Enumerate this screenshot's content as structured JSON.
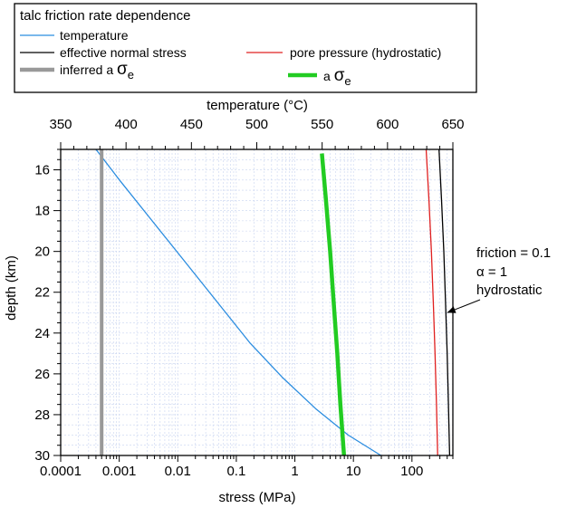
{
  "chart_data": {
    "type": "line",
    "legend": {
      "title": "talc friction rate dependence",
      "placement": "top",
      "entries": [
        {
          "label": "temperature",
          "color": "#2b8de0",
          "style": "thin"
        },
        {
          "label": "effective normal stress",
          "color": "#000000",
          "style": "thin"
        },
        {
          "label": "pore pressure (hydrostatic)",
          "color": "#e02020",
          "style": "thin"
        },
        {
          "label_prefix": "inferred a",
          "label_symbol": "σ",
          "label_sub": "e",
          "color": "#999999",
          "style": "thick"
        },
        {
          "label_prefix": "a",
          "label_symbol": "σ",
          "label_sub": "e",
          "color": "#22cc22",
          "style": "thick"
        }
      ]
    },
    "top_axis": {
      "label": "temperature (°C)",
      "range": [
        350,
        650
      ],
      "ticks": [
        "350",
        "400",
        "450",
        "500",
        "550",
        "600",
        "650"
      ]
    },
    "bottom_axis": {
      "label": "stress (MPa)",
      "scale": "log",
      "range": [
        0.0001,
        500
      ],
      "ticks": [
        {
          "v": 0.0001,
          "t": "0.0001"
        },
        {
          "v": 0.001,
          "t": "0.001"
        },
        {
          "v": 0.01,
          "t": "0.01"
        },
        {
          "v": 0.1,
          "t": "0.1"
        },
        {
          "v": 1,
          "t": "1"
        },
        {
          "v": 10,
          "t": "10"
        },
        {
          "v": 100,
          "t": "100"
        }
      ]
    },
    "y_axis": {
      "label": "depth (km)",
      "range": [
        15,
        30
      ],
      "inverted": true,
      "ticks": [
        "16",
        "18",
        "20",
        "22",
        "24",
        "26",
        "28",
        "30"
      ]
    },
    "grid": true,
    "annotation": {
      "lines": [
        "friction = 0.1",
        "α = 1",
        "hydrostatic"
      ],
      "arrow_to": {
        "stress": 400,
        "depth": 23
      }
    },
    "series": [
      {
        "name": "temperature",
        "axis": "top",
        "color": "#2b8de0",
        "width": 1.3,
        "points": [
          [
            377,
            15
          ],
          [
            395,
            16.5
          ],
          [
            420,
            18.5
          ],
          [
            445,
            20.5
          ],
          [
            470,
            22.5
          ],
          [
            495,
            24.5
          ],
          [
            520,
            26.2
          ],
          [
            545,
            27.7
          ],
          [
            570,
            29.0
          ],
          [
            595,
            30
          ]
        ]
      },
      {
        "name": "effective normal stress",
        "axis": "bottom",
        "color": "#000000",
        "width": 1.3,
        "points": [
          [
            290,
            15
          ],
          [
            320,
            17.5
          ],
          [
            350,
            20
          ],
          [
            375,
            22.5
          ],
          [
            400,
            25
          ],
          [
            420,
            27.5
          ],
          [
            440,
            30
          ]
        ]
      },
      {
        "name": "pore pressure (hydrostatic)",
        "axis": "bottom",
        "color": "#e02020",
        "width": 1.3,
        "points": [
          [
            175,
            15
          ],
          [
            195,
            17.5
          ],
          [
            215,
            20
          ],
          [
            232,
            22.5
          ],
          [
            248,
            25
          ],
          [
            262,
            27.5
          ],
          [
            275,
            30
          ]
        ]
      },
      {
        "name": "inferred a σe",
        "axis": "bottom",
        "color": "#999999",
        "width": 4,
        "points": [
          [
            0.0005,
            15
          ],
          [
            0.0005,
            30
          ]
        ]
      },
      {
        "name": "a σe",
        "axis": "bottom",
        "color": "#22cc22",
        "width": 4.5,
        "points": [
          [
            2.9,
            15.2
          ],
          [
            3.4,
            17.5
          ],
          [
            4.0,
            20
          ],
          [
            4.6,
            22.5
          ],
          [
            5.3,
            25
          ],
          [
            6.0,
            27.5
          ],
          [
            6.9,
            30
          ]
        ]
      }
    ]
  }
}
